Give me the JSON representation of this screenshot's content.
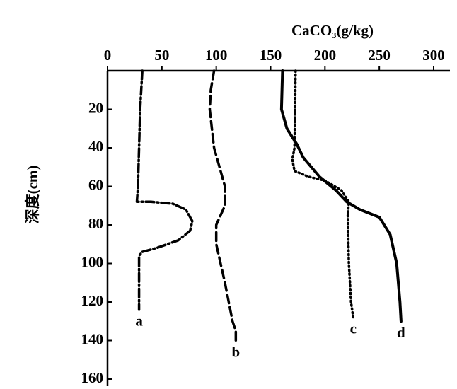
{
  "chart_data": {
    "type": "line",
    "x_label": "CaCO₃(g/kg)",
    "y_label": "深度(cm)",
    "xlim": [
      0,
      300
    ],
    "xticks": [
      0,
      50,
      100,
      150,
      200,
      250,
      300
    ],
    "ylim": [
      0,
      160
    ],
    "yticks": [
      20,
      40,
      60,
      80,
      100,
      120,
      140,
      160
    ],
    "y_inverted": true,
    "series": [
      {
        "name": "a",
        "color": "#000",
        "dash": "dashdot",
        "x": [
          32,
          30,
          29,
          28,
          27,
          40,
          60,
          72,
          78,
          76,
          65,
          45,
          32,
          29,
          29,
          29
        ],
        "y": [
          0,
          20,
          40,
          60,
          68,
          68,
          69,
          72,
          78,
          83,
          88,
          92,
          94,
          96,
          110,
          124
        ]
      },
      {
        "name": "b",
        "color": "#000",
        "dash": "dashed",
        "x": [
          98,
          95,
          94,
          98,
          108,
          108,
          100,
          100,
          108,
          115,
          118,
          118
        ],
        "y": [
          0,
          10,
          20,
          40,
          60,
          70,
          80,
          90,
          110,
          130,
          135,
          140
        ]
      },
      {
        "name": "c",
        "color": "#000",
        "dash": "dotted",
        "x": [
          173,
          172,
          170,
          172,
          185,
          200,
          215,
          222,
          221,
          222,
          224,
          226
        ],
        "y": [
          0,
          40,
          46,
          52,
          55,
          57,
          62,
          68,
          75,
          100,
          120,
          128
        ]
      },
      {
        "name": "d",
        "color": "#000",
        "dash": "solid",
        "x": [
          161,
          160,
          165,
          174,
          180,
          195,
          210,
          220,
          232,
          250,
          260,
          266,
          269,
          270
        ],
        "y": [
          0,
          20,
          30,
          38,
          45,
          55,
          62,
          68,
          72,
          76,
          85,
          100,
          120,
          130
        ]
      }
    ]
  }
}
